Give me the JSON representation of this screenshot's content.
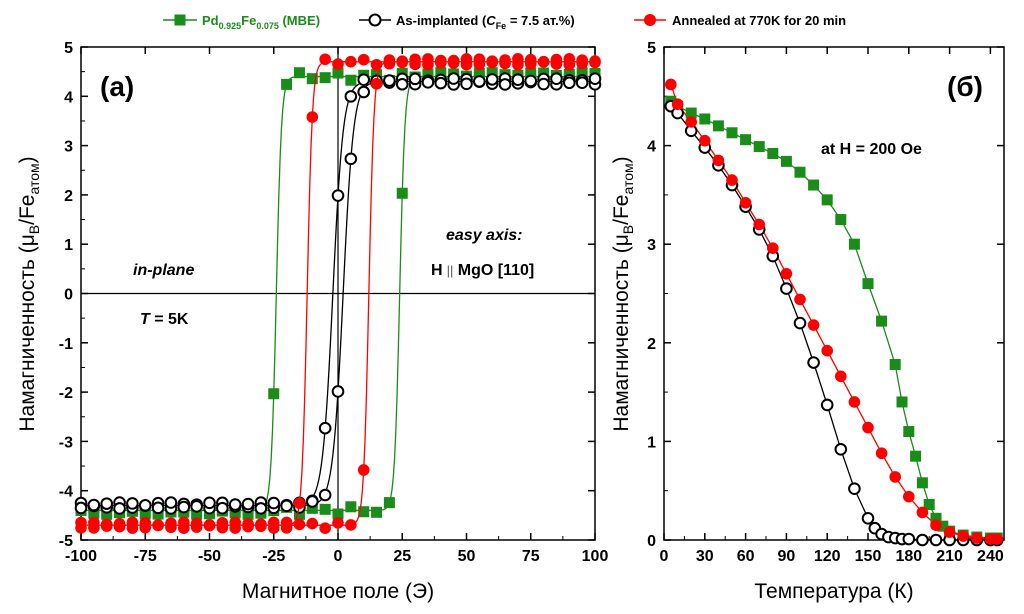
{
  "chart_data": [
    {
      "type": "line",
      "panel_label": "(a)",
      "xlabel": "Магнитное поле (Э)",
      "ylabel_main": "Намагниченность (μ",
      "ylabel_sub1": "B",
      "ylabel_mid": "/Fe",
      "ylabel_sub2": "атом",
      "ylabel_end": ")",
      "xlim": [
        -100,
        100
      ],
      "ylim": [
        -5,
        5
      ],
      "xticks": [
        -100,
        -75,
        -50,
        -25,
        0,
        25,
        50,
        75,
        100
      ],
      "xtick_labels": [
        "-100",
        "-75",
        "-50",
        "-25",
        "0",
        "25",
        "50",
        "75",
        "100"
      ],
      "yticks": [
        -5,
        -4,
        -3,
        -2,
        -1,
        0,
        1,
        2,
        3,
        4,
        5
      ],
      "ytick_labels": [
        "-5",
        "-4",
        "-3",
        "-2",
        "-1",
        "0",
        "1",
        "2",
        "3",
        "4",
        "5"
      ],
      "annotations": {
        "in_plane": "in-plane",
        "temp_T": "T",
        "temp_rest": " = 5K",
        "easy_axis": "easy axis:",
        "h_letter": "H",
        "h_sep": "||",
        "h_rest": " MgO [110]"
      },
      "series": [
        {
          "name": "Pd0.925Fe0.075 (MBE)",
          "color": "#1a8c1a",
          "marker": "square",
          "hc": 24,
          "ms": 4.4,
          "width": 2.0
        },
        {
          "name": "As-implanted (CFe = 7.5 ат.%)",
          "color": "#000000",
          "marker": "open-circle",
          "hc": 2,
          "ms": 4.3,
          "width": 4.0
        },
        {
          "name": "Annealed at 770K for 20 min",
          "color": "#ff0000",
          "marker": "circle",
          "hc": 12,
          "ms": 4.7,
          "width": 2.0
        }
      ]
    },
    {
      "type": "line",
      "panel_label": "(б)",
      "xlabel": "Температура (К)",
      "ylabel_main": "Намагниченность (μ",
      "ylabel_sub1": "B",
      "ylabel_mid": "/Fe",
      "ylabel_sub2": "атом",
      "ylabel_end": ")",
      "xlim": [
        0,
        250
      ],
      "ylim": [
        0,
        5
      ],
      "xticks": [
        0,
        30,
        60,
        90,
        120,
        150,
        180,
        210,
        240
      ],
      "xtick_labels": [
        "0",
        "30",
        "60",
        "90",
        "120",
        "150",
        "180",
        "210",
        "240"
      ],
      "yticks": [
        0,
        1,
        2,
        3,
        4,
        5
      ],
      "ytick_labels": [
        "0",
        "1",
        "2",
        "3",
        "4",
        "5"
      ],
      "annotation": "at H = 200 Oe",
      "series": [
        {
          "name": "Pd0.925Fe0.075 (MBE)",
          "color": "#1a8c1a",
          "marker": "square",
          "x": [
            5,
            10,
            20,
            30,
            40,
            50,
            60,
            70,
            80,
            90,
            100,
            110,
            120,
            130,
            140,
            150,
            160,
            170,
            175,
            180,
            185,
            190,
            195,
            200,
            205,
            210,
            220,
            230,
            240,
            245
          ],
          "y": [
            4.45,
            4.4,
            4.33,
            4.27,
            4.2,
            4.13,
            4.06,
            3.99,
            3.92,
            3.84,
            3.73,
            3.6,
            3.45,
            3.25,
            3.0,
            2.6,
            2.22,
            1.78,
            1.4,
            1.1,
            0.85,
            0.58,
            0.36,
            0.22,
            0.14,
            0.09,
            0.05,
            0.03,
            0.02,
            0.02
          ]
        },
        {
          "name": "As-implanted (CFe = 7.5 ат.%)",
          "color": "#000000",
          "marker": "open-circle",
          "x": [
            5,
            10,
            20,
            30,
            40,
            50,
            60,
            70,
            80,
            90,
            100,
            110,
            120,
            130,
            140,
            150,
            155,
            160,
            165,
            170,
            175,
            180,
            190,
            200,
            210,
            220,
            230,
            240,
            245
          ],
          "y": [
            4.4,
            4.33,
            4.15,
            3.98,
            3.8,
            3.6,
            3.38,
            3.15,
            2.88,
            2.55,
            2.2,
            1.8,
            1.37,
            0.92,
            0.52,
            0.22,
            0.12,
            0.06,
            0.03,
            0.02,
            0.01,
            0.01,
            0.0,
            0.0,
            0.0,
            0.0,
            0.0,
            0.0,
            0.0
          ]
        },
        {
          "name": "Annealed at 770K for 20 min",
          "color": "#ff0000",
          "marker": "circle",
          "x": [
            5,
            10,
            20,
            30,
            40,
            50,
            60,
            70,
            80,
            90,
            100,
            110,
            120,
            130,
            140,
            150,
            160,
            170,
            180,
            190,
            200,
            210,
            220,
            230,
            240,
            245
          ],
          "y": [
            4.62,
            4.42,
            4.24,
            4.05,
            3.85,
            3.65,
            3.42,
            3.2,
            2.96,
            2.7,
            2.44,
            2.18,
            1.92,
            1.66,
            1.4,
            1.14,
            0.88,
            0.64,
            0.44,
            0.28,
            0.15,
            0.08,
            0.04,
            0.02,
            0.01,
            0.01
          ]
        }
      ]
    }
  ],
  "legend": {
    "items": [
      {
        "color": "#1a8c1a",
        "marker": "square",
        "main": "Pd",
        "sub1": "0.925",
        "mid": "Fe",
        "sub2": "0.075",
        "tail": " (MBE)"
      },
      {
        "color": "#000000",
        "marker": "open-circle",
        "main": "As-implanted (",
        "italic": "C",
        "sub": "Fe",
        "tail": " = 7.5 ат.%)"
      },
      {
        "color": "#ff0000",
        "marker": "circle",
        "text": "Annealed at 770K for 20 min"
      }
    ]
  }
}
